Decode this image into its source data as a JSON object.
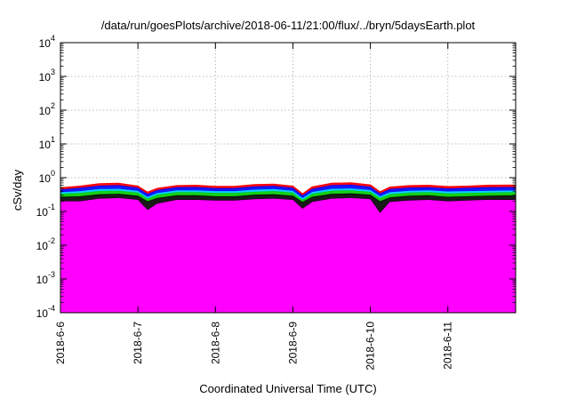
{
  "chart_data": {
    "type": "area",
    "title": "/data/run/goesPlots/archive/2018-06-11/21:00/flux/../bryn/5daysEarth.plot",
    "xlabel": "Coordinated Universal Time (UTC)",
    "ylabel": "cSv/day",
    "yscale": "log",
    "ylim": [
      0.0001,
      10000
    ],
    "y_ticks": [
      {
        "value": 0.0001,
        "base": "10",
        "exp": "-4"
      },
      {
        "value": 0.001,
        "base": "10",
        "exp": "-3"
      },
      {
        "value": 0.01,
        "base": "10",
        "exp": "-2"
      },
      {
        "value": 0.1,
        "base": "10",
        "exp": "-1"
      },
      {
        "value": 1,
        "base": "10",
        "exp": "0"
      },
      {
        "value": 10,
        "base": "10",
        "exp": "1"
      },
      {
        "value": 100,
        "base": "10",
        "exp": "2"
      },
      {
        "value": 1000,
        "base": "10",
        "exp": "3"
      },
      {
        "value": 10000,
        "base": "10",
        "exp": "4"
      }
    ],
    "xlim": [
      "2018-06-06T00:00",
      "2018-06-11T21:00"
    ],
    "x_ticks": [
      {
        "date": "2018-06-06",
        "label": "2018-6-6"
      },
      {
        "date": "2018-06-07",
        "label": "2018-6-7"
      },
      {
        "date": "2018-06-08",
        "label": "2018-6-8"
      },
      {
        "date": "2018-06-09",
        "label": "2018-6-9"
      },
      {
        "date": "2018-06-10",
        "label": "2018-6-10"
      },
      {
        "date": "2018-06-11",
        "label": "2018-6-11"
      }
    ],
    "grid": true,
    "legend": "none",
    "series_colors": [
      "#ff00ff",
      "#ff0000",
      "#000000",
      "#00ccff",
      "#00cc00",
      "#0000ff"
    ],
    "series": [
      {
        "color": "#ff00ff",
        "values": [
          {
            "x": "2018-06-06T00:00",
            "y": 0.2
          },
          {
            "x": "2018-06-06T06:00",
            "y": 0.2
          },
          {
            "x": "2018-06-06T12:00",
            "y": 0.24
          },
          {
            "x": "2018-06-06T18:00",
            "y": 0.25
          },
          {
            "x": "2018-06-07T00:00",
            "y": 0.22
          },
          {
            "x": "2018-06-07T03:00",
            "y": 0.11
          },
          {
            "x": "2018-06-07T06:00",
            "y": 0.17
          },
          {
            "x": "2018-06-07T12:00",
            "y": 0.22
          },
          {
            "x": "2018-06-07T18:00",
            "y": 0.22
          },
          {
            "x": "2018-06-08T00:00",
            "y": 0.21
          },
          {
            "x": "2018-06-08T06:00",
            "y": 0.21
          },
          {
            "x": "2018-06-08T12:00",
            "y": 0.23
          },
          {
            "x": "2018-06-08T18:00",
            "y": 0.24
          },
          {
            "x": "2018-06-09T00:00",
            "y": 0.22
          },
          {
            "x": "2018-06-09T03:00",
            "y": 0.12
          },
          {
            "x": "2018-06-09T06:00",
            "y": 0.19
          },
          {
            "x": "2018-06-09T12:00",
            "y": 0.24
          },
          {
            "x": "2018-06-09T18:00",
            "y": 0.25
          },
          {
            "x": "2018-06-10T00:00",
            "y": 0.23
          },
          {
            "x": "2018-06-10T03:00",
            "y": 0.09
          },
          {
            "x": "2018-06-10T06:00",
            "y": 0.19
          },
          {
            "x": "2018-06-10T12:00",
            "y": 0.21
          },
          {
            "x": "2018-06-10T18:00",
            "y": 0.22
          },
          {
            "x": "2018-06-11T00:00",
            "y": 0.2
          },
          {
            "x": "2018-06-11T06:00",
            "y": 0.21
          },
          {
            "x": "2018-06-11T12:00",
            "y": 0.22
          },
          {
            "x": "2018-06-11T21:00",
            "y": 0.22
          }
        ]
      },
      {
        "color": "#000000",
        "values": [
          {
            "x": "2018-06-06T00:00",
            "y": 0.27
          },
          {
            "x": "2018-06-06T06:00",
            "y": 0.28
          },
          {
            "x": "2018-06-06T12:00",
            "y": 0.32
          },
          {
            "x": "2018-06-06T18:00",
            "y": 0.33
          },
          {
            "x": "2018-06-07T00:00",
            "y": 0.29
          },
          {
            "x": "2018-06-07T03:00",
            "y": 0.2
          },
          {
            "x": "2018-06-07T06:00",
            "y": 0.25
          },
          {
            "x": "2018-06-07T12:00",
            "y": 0.3
          },
          {
            "x": "2018-06-07T18:00",
            "y": 0.3
          },
          {
            "x": "2018-06-08T00:00",
            "y": 0.28
          },
          {
            "x": "2018-06-08T06:00",
            "y": 0.28
          },
          {
            "x": "2018-06-08T12:00",
            "y": 0.31
          },
          {
            "x": "2018-06-08T18:00",
            "y": 0.32
          },
          {
            "x": "2018-06-09T00:00",
            "y": 0.29
          },
          {
            "x": "2018-06-09T03:00",
            "y": 0.19
          },
          {
            "x": "2018-06-09T06:00",
            "y": 0.27
          },
          {
            "x": "2018-06-09T12:00",
            "y": 0.33
          },
          {
            "x": "2018-06-09T18:00",
            "y": 0.34
          },
          {
            "x": "2018-06-10T00:00",
            "y": 0.31
          },
          {
            "x": "2018-06-10T03:00",
            "y": 0.2
          },
          {
            "x": "2018-06-10T06:00",
            "y": 0.26
          },
          {
            "x": "2018-06-10T12:00",
            "y": 0.29
          },
          {
            "x": "2018-06-10T18:00",
            "y": 0.3
          },
          {
            "x": "2018-06-11T00:00",
            "y": 0.27
          },
          {
            "x": "2018-06-11T06:00",
            "y": 0.28
          },
          {
            "x": "2018-06-11T12:00",
            "y": 0.29
          },
          {
            "x": "2018-06-11T21:00",
            "y": 0.3
          }
        ]
      },
      {
        "color": "#00cc00",
        "values": [
          {
            "x": "2018-06-06T00:00",
            "y": 0.33
          },
          {
            "x": "2018-06-06T06:00",
            "y": 0.35
          },
          {
            "x": "2018-06-06T12:00",
            "y": 0.4
          },
          {
            "x": "2018-06-06T18:00",
            "y": 0.41
          },
          {
            "x": "2018-06-07T00:00",
            "y": 0.36
          },
          {
            "x": "2018-06-07T03:00",
            "y": 0.24
          },
          {
            "x": "2018-06-07T06:00",
            "y": 0.31
          },
          {
            "x": "2018-06-07T12:00",
            "y": 0.37
          },
          {
            "x": "2018-06-07T18:00",
            "y": 0.37
          },
          {
            "x": "2018-06-08T00:00",
            "y": 0.35
          },
          {
            "x": "2018-06-08T06:00",
            "y": 0.35
          },
          {
            "x": "2018-06-08T12:00",
            "y": 0.38
          },
          {
            "x": "2018-06-08T18:00",
            "y": 0.4
          },
          {
            "x": "2018-06-09T00:00",
            "y": 0.36
          },
          {
            "x": "2018-06-09T03:00",
            "y": 0.22
          },
          {
            "x": "2018-06-09T06:00",
            "y": 0.33
          },
          {
            "x": "2018-06-09T12:00",
            "y": 0.41
          },
          {
            "x": "2018-06-09T18:00",
            "y": 0.42
          },
          {
            "x": "2018-06-10T00:00",
            "y": 0.38
          },
          {
            "x": "2018-06-10T03:00",
            "y": 0.25
          },
          {
            "x": "2018-06-10T06:00",
            "y": 0.32
          },
          {
            "x": "2018-06-10T12:00",
            "y": 0.36
          },
          {
            "x": "2018-06-10T18:00",
            "y": 0.37
          },
          {
            "x": "2018-06-11T00:00",
            "y": 0.34
          },
          {
            "x": "2018-06-11T06:00",
            "y": 0.35
          },
          {
            "x": "2018-06-11T12:00",
            "y": 0.36
          },
          {
            "x": "2018-06-11T21:00",
            "y": 0.37
          }
        ]
      },
      {
        "color": "#00ccff",
        "values": [
          {
            "x": "2018-06-06T00:00",
            "y": 0.37
          },
          {
            "x": "2018-06-06T06:00",
            "y": 0.4
          },
          {
            "x": "2018-06-06T12:00",
            "y": 0.46
          },
          {
            "x": "2018-06-06T18:00",
            "y": 0.47
          },
          {
            "x": "2018-06-07T00:00",
            "y": 0.41
          },
          {
            "x": "2018-06-07T03:00",
            "y": 0.27
          },
          {
            "x": "2018-06-07T06:00",
            "y": 0.35
          },
          {
            "x": "2018-06-07T12:00",
            "y": 0.42
          },
          {
            "x": "2018-06-07T18:00",
            "y": 0.42
          },
          {
            "x": "2018-06-08T00:00",
            "y": 0.4
          },
          {
            "x": "2018-06-08T06:00",
            "y": 0.4
          },
          {
            "x": "2018-06-08T12:00",
            "y": 0.44
          },
          {
            "x": "2018-06-08T18:00",
            "y": 0.46
          },
          {
            "x": "2018-06-09T00:00",
            "y": 0.41
          },
          {
            "x": "2018-06-09T03:00",
            "y": 0.25
          },
          {
            "x": "2018-06-09T06:00",
            "y": 0.38
          },
          {
            "x": "2018-06-09T12:00",
            "y": 0.47
          },
          {
            "x": "2018-06-09T18:00",
            "y": 0.48
          },
          {
            "x": "2018-06-10T00:00",
            "y": 0.43
          },
          {
            "x": "2018-06-10T03:00",
            "y": 0.28
          },
          {
            "x": "2018-06-10T06:00",
            "y": 0.37
          },
          {
            "x": "2018-06-10T12:00",
            "y": 0.41
          },
          {
            "x": "2018-06-10T18:00",
            "y": 0.42
          },
          {
            "x": "2018-06-11T00:00",
            "y": 0.39
          },
          {
            "x": "2018-06-11T06:00",
            "y": 0.4
          },
          {
            "x": "2018-06-11T12:00",
            "y": 0.41
          },
          {
            "x": "2018-06-11T21:00",
            "y": 0.42
          }
        ]
      },
      {
        "color": "#0000ff",
        "values": [
          {
            "x": "2018-06-06T00:00",
            "y": 0.45
          },
          {
            "x": "2018-06-06T06:00",
            "y": 0.5
          },
          {
            "x": "2018-06-06T12:00",
            "y": 0.58
          },
          {
            "x": "2018-06-06T18:00",
            "y": 0.6
          },
          {
            "x": "2018-06-07T00:00",
            "y": 0.5
          },
          {
            "x": "2018-06-07T03:00",
            "y": 0.33
          },
          {
            "x": "2018-06-07T06:00",
            "y": 0.43
          },
          {
            "x": "2018-06-07T12:00",
            "y": 0.52
          },
          {
            "x": "2018-06-07T18:00",
            "y": 0.53
          },
          {
            "x": "2018-06-08T00:00",
            "y": 0.49
          },
          {
            "x": "2018-06-08T06:00",
            "y": 0.49
          },
          {
            "x": "2018-06-08T12:00",
            "y": 0.55
          },
          {
            "x": "2018-06-08T18:00",
            "y": 0.57
          },
          {
            "x": "2018-06-09T00:00",
            "y": 0.5
          },
          {
            "x": "2018-06-09T03:00",
            "y": 0.3
          },
          {
            "x": "2018-06-09T06:00",
            "y": 0.47
          },
          {
            "x": "2018-06-09T12:00",
            "y": 0.6
          },
          {
            "x": "2018-06-09T18:00",
            "y": 0.62
          },
          {
            "x": "2018-06-10T00:00",
            "y": 0.54
          },
          {
            "x": "2018-06-10T03:00",
            "y": 0.34
          },
          {
            "x": "2018-06-10T06:00",
            "y": 0.46
          },
          {
            "x": "2018-06-10T12:00",
            "y": 0.51
          },
          {
            "x": "2018-06-10T18:00",
            "y": 0.52
          },
          {
            "x": "2018-06-11T00:00",
            "y": 0.48
          },
          {
            "x": "2018-06-11T06:00",
            "y": 0.5
          },
          {
            "x": "2018-06-11T12:00",
            "y": 0.52
          },
          {
            "x": "2018-06-11T21:00",
            "y": 0.53
          }
        ]
      },
      {
        "color": "#ff0000",
        "values": [
          {
            "x": "2018-06-06T00:00",
            "y": 0.5
          },
          {
            "x": "2018-06-06T06:00",
            "y": 0.56
          },
          {
            "x": "2018-06-06T12:00",
            "y": 0.66
          },
          {
            "x": "2018-06-06T18:00",
            "y": 0.68
          },
          {
            "x": "2018-06-07T00:00",
            "y": 0.56
          },
          {
            "x": "2018-06-07T03:00",
            "y": 0.37
          },
          {
            "x": "2018-06-07T06:00",
            "y": 0.48
          },
          {
            "x": "2018-06-07T12:00",
            "y": 0.58
          },
          {
            "x": "2018-06-07T18:00",
            "y": 0.59
          },
          {
            "x": "2018-06-08T00:00",
            "y": 0.55
          },
          {
            "x": "2018-06-08T06:00",
            "y": 0.55
          },
          {
            "x": "2018-06-08T12:00",
            "y": 0.62
          },
          {
            "x": "2018-06-08T18:00",
            "y": 0.64
          },
          {
            "x": "2018-06-09T00:00",
            "y": 0.56
          },
          {
            "x": "2018-06-09T03:00",
            "y": 0.33
          },
          {
            "x": "2018-06-09T06:00",
            "y": 0.53
          },
          {
            "x": "2018-06-09T12:00",
            "y": 0.68
          },
          {
            "x": "2018-06-09T18:00",
            "y": 0.7
          },
          {
            "x": "2018-06-10T00:00",
            "y": 0.61
          },
          {
            "x": "2018-06-10T03:00",
            "y": 0.38
          },
          {
            "x": "2018-06-10T06:00",
            "y": 0.52
          },
          {
            "x": "2018-06-10T12:00",
            "y": 0.58
          },
          {
            "x": "2018-06-10T18:00",
            "y": 0.59
          },
          {
            "x": "2018-06-11T00:00",
            "y": 0.54
          },
          {
            "x": "2018-06-11T06:00",
            "y": 0.56
          },
          {
            "x": "2018-06-11T12:00",
            "y": 0.59
          },
          {
            "x": "2018-06-11T21:00",
            "y": 0.6
          }
        ]
      }
    ]
  }
}
